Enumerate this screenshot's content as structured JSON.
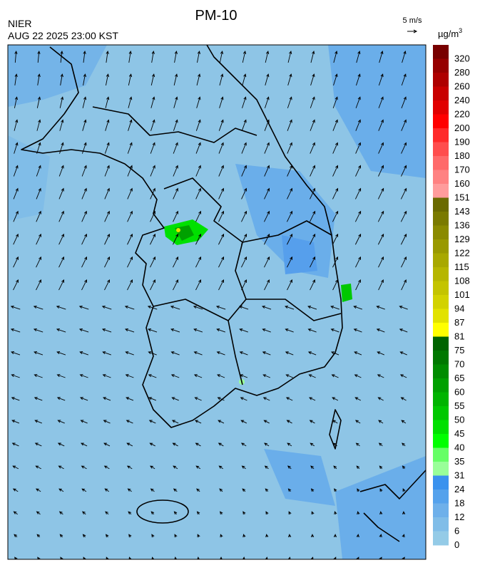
{
  "header": {
    "title": "PM-10",
    "agency": "NIER",
    "timestamp": "AUG 22 2025 23:00 KST"
  },
  "wind_scale": {
    "label": "5 m/s"
  },
  "colorbar": {
    "unit": "µg/m",
    "unit_superscript": "3",
    "levels": [
      {
        "value": 320,
        "color": "#780000"
      },
      {
        "value": 280,
        "color": "#960000"
      },
      {
        "value": 260,
        "color": "#ae0000"
      },
      {
        "value": 240,
        "color": "#c80000"
      },
      {
        "value": 220,
        "color": "#e10000"
      },
      {
        "value": 200,
        "color": "#ff0000"
      },
      {
        "value": 190,
        "color": "#ff2a2a"
      },
      {
        "value": 180,
        "color": "#ff4d4d"
      },
      {
        "value": 170,
        "color": "#ff6a6a"
      },
      {
        "value": 160,
        "color": "#ff8282"
      },
      {
        "value": 151,
        "color": "#ff9c9c"
      },
      {
        "value": 143,
        "color": "#6a6a00"
      },
      {
        "value": 136,
        "color": "#7a7a00"
      },
      {
        "value": 129,
        "color": "#8a8a00"
      },
      {
        "value": 122,
        "color": "#999900"
      },
      {
        "value": 115,
        "color": "#a8a800"
      },
      {
        "value": 108,
        "color": "#b6b600"
      },
      {
        "value": 101,
        "color": "#c4c400"
      },
      {
        "value": 94,
        "color": "#d2d200"
      },
      {
        "value": 87,
        "color": "#e2e200"
      },
      {
        "value": 81,
        "color": "#ffff00"
      },
      {
        "value": 75,
        "color": "#006400"
      },
      {
        "value": 70,
        "color": "#007800"
      },
      {
        "value": 65,
        "color": "#008c00"
      },
      {
        "value": 60,
        "color": "#00a000"
      },
      {
        "value": 55,
        "color": "#00b400"
      },
      {
        "value": 50,
        "color": "#00c800"
      },
      {
        "value": 45,
        "color": "#00e000"
      },
      {
        "value": 40,
        "color": "#00ff00"
      },
      {
        "value": 35,
        "color": "#66ff66"
      },
      {
        "value": 31,
        "color": "#99ff99"
      },
      {
        "value": 24,
        "color": "#3a92ee"
      },
      {
        "value": 18,
        "color": "#55a2ec"
      },
      {
        "value": 12,
        "color": "#6eb0ea"
      },
      {
        "value": 6,
        "color": "#80bde8"
      },
      {
        "value": 0,
        "color": "#94cbe7"
      }
    ]
  }
}
